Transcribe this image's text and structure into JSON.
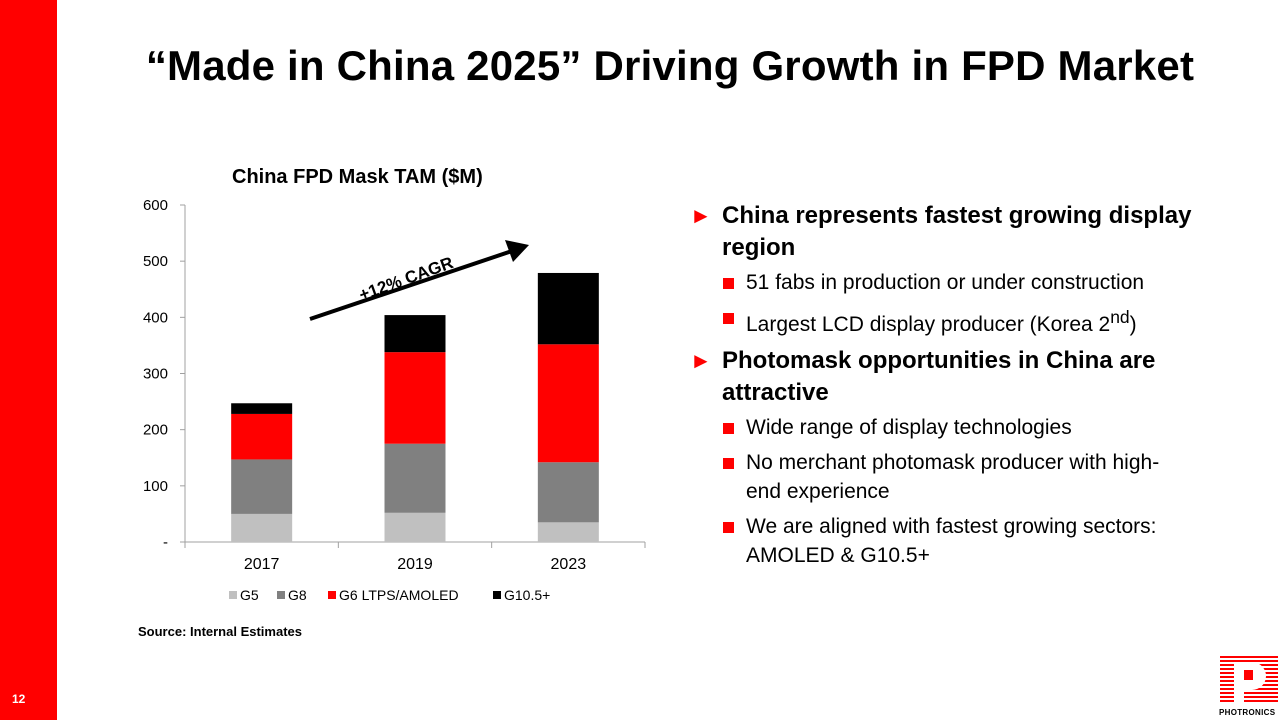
{
  "slide": {
    "page_number": "12",
    "title": "“Made in China 2025” Driving Growth in FPD Market",
    "source": "Source: Internal Estimates",
    "logo_text": "PHOTRONICS",
    "accent_color": "#ff0000"
  },
  "bullets": [
    {
      "text": "China represents fastest growing display region",
      "subs": [
        {
          "text": "51 fabs in production or under construction"
        },
        {
          "text": "Largest LCD display producer (Korea 2",
          "sup": "nd",
          "after": ")"
        }
      ]
    },
    {
      "text": "Photomask opportunities in China are attractive",
      "subs": [
        {
          "text": "Wide range of display technologies"
        },
        {
          "text": "No merchant photomask producer with high-end experience"
        },
        {
          "text": "We are aligned with fastest growing sectors: AMOLED & G10.5+"
        }
      ]
    }
  ],
  "chart_data": {
    "type": "bar",
    "stacked": true,
    "title": "China FPD Mask TAM ($M)",
    "categories": [
      "2017",
      "2019",
      "2023"
    ],
    "series": [
      {
        "name": "G5",
        "color": "#c0c0c0",
        "values": [
          50,
          52,
          35
        ]
      },
      {
        "name": "G8",
        "color": "#808080",
        "values": [
          97,
          123,
          107
        ]
      },
      {
        "name": "G6 LTPS/AMOLED",
        "color": "#ff0000",
        "values": [
          81,
          163,
          210
        ]
      },
      {
        "name": "G10.5+",
        "color": "#000000",
        "values": [
          19,
          66,
          127
        ]
      }
    ],
    "ylim": [
      0,
      600
    ],
    "yticks": [
      0,
      100,
      200,
      300,
      400,
      500,
      600
    ],
    "ytick_labels": [
      "-",
      "100",
      "200",
      "300",
      "400",
      "500",
      "600"
    ],
    "legend_position": "bottom",
    "grid": false,
    "annotation": "+12% CAGR"
  }
}
